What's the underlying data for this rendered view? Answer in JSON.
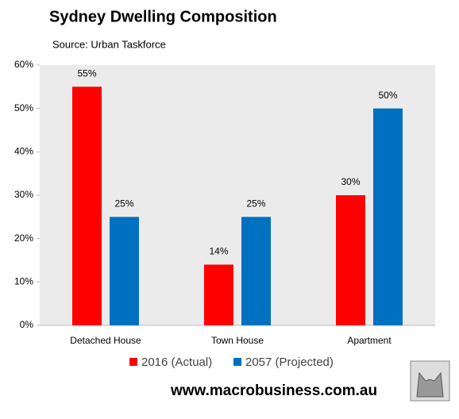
{
  "chart_data": {
    "type": "bar",
    "title": "Sydney Dwelling Composition",
    "subtitle": "Source: Urban Taskforce",
    "categories": [
      "Detached House",
      "Town House",
      "Apartment"
    ],
    "series": [
      {
        "name": "2016 (Actual)",
        "color": "#ff0000",
        "values": [
          55,
          14,
          30
        ],
        "value_labels": [
          "55%",
          "14%",
          "30%"
        ]
      },
      {
        "name": "2057 (Projected)",
        "color": "#0070c0",
        "values": [
          25,
          25,
          50
        ],
        "value_labels": [
          "25%",
          "25%",
          "50%"
        ]
      }
    ],
    "ylim": [
      0,
      60
    ],
    "yticks": [
      {
        "value": 0,
        "label": "0%"
      },
      {
        "value": 10,
        "label": "10%"
      },
      {
        "value": 20,
        "label": "20%"
      },
      {
        "value": 30,
        "label": "30%"
      },
      {
        "value": 40,
        "label": "40%"
      },
      {
        "value": 50,
        "label": "50%"
      },
      {
        "value": 60,
        "label": "60%"
      }
    ],
    "grid": false,
    "legend": "bottom"
  },
  "footer": "www.macrobusiness.com.au"
}
